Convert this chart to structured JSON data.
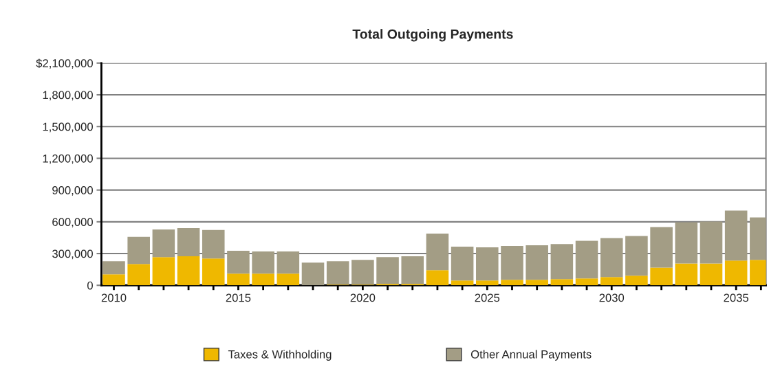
{
  "chart_data": {
    "type": "bar",
    "title": "Total Outgoing Payments",
    "stacked": true,
    "x": [
      2010,
      2011,
      2012,
      2013,
      2014,
      2015,
      2016,
      2017,
      2018,
      2019,
      2020,
      2021,
      2022,
      2023,
      2024,
      2025,
      2026,
      2027,
      2028,
      2029,
      2030,
      2031,
      2032,
      2033,
      2034,
      2035,
      2036
    ],
    "series": [
      {
        "name": "Taxes & Withholding",
        "color": "#efb800",
        "values": [
          104000,
          202000,
          267000,
          274000,
          254000,
          111000,
          111000,
          111000,
          0,
          7000,
          7000,
          13000,
          13000,
          143000,
          46000,
          46000,
          52000,
          52000,
          58000,
          65000,
          78000,
          91000,
          168000,
          207000,
          207000,
          233000,
          240000
        ]
      },
      {
        "name": "Other Annual Payments",
        "color": "#a39d85",
        "values": [
          124000,
          255000,
          261000,
          267000,
          268000,
          215000,
          209000,
          209000,
          215000,
          221000,
          234000,
          254000,
          261000,
          346000,
          319000,
          313000,
          320000,
          326000,
          331000,
          356000,
          369000,
          375000,
          382000,
          389000,
          395000,
          473000,
          401000
        ]
      }
    ],
    "xlim": [
      2009.5,
      2036.2
    ],
    "xticks": [
      2010,
      {
        "value": 2011,
        "label": null
      },
      {
        "value": 2012,
        "label": null
      },
      {
        "value": 2013,
        "label": null
      },
      {
        "value": 2014,
        "label": null
      },
      2015,
      {
        "value": 2016,
        "label": null
      },
      {
        "value": 2017,
        "label": null
      },
      {
        "value": 2018,
        "label": null
      },
      {
        "value": 2019,
        "label": null
      },
      2020,
      {
        "value": 2021,
        "label": null
      },
      {
        "value": 2022,
        "label": null
      },
      {
        "value": 2023,
        "label": null
      },
      {
        "value": 2024,
        "label": null
      },
      2025,
      {
        "value": 2026,
        "label": null
      },
      {
        "value": 2027,
        "label": null
      },
      {
        "value": 2028,
        "label": null
      },
      {
        "value": 2029,
        "label": null
      },
      2030,
      {
        "value": 2031,
        "label": null
      },
      {
        "value": 2032,
        "label": null
      },
      {
        "value": 2033,
        "label": null
      },
      {
        "value": 2034,
        "label": null
      },
      2035,
      {
        "value": 2036,
        "label": null
      }
    ],
    "ylim": [
      0,
      2100000
    ],
    "yticks": [
      0,
      {
        "value": 300000,
        "label": "300,000"
      },
      {
        "value": 600000,
        "label": "600,000"
      },
      {
        "value": 900000,
        "label": "900,000"
      },
      {
        "value": 1200000,
        "label": "1,200,000"
      },
      {
        "value": 1500000,
        "label": "1,500,000"
      },
      {
        "value": 1800000,
        "label": "1,800,000"
      },
      {
        "value": 2100000,
        "label": "$2,100,000"
      }
    ],
    "grid": "y",
    "legend": "bottom"
  }
}
